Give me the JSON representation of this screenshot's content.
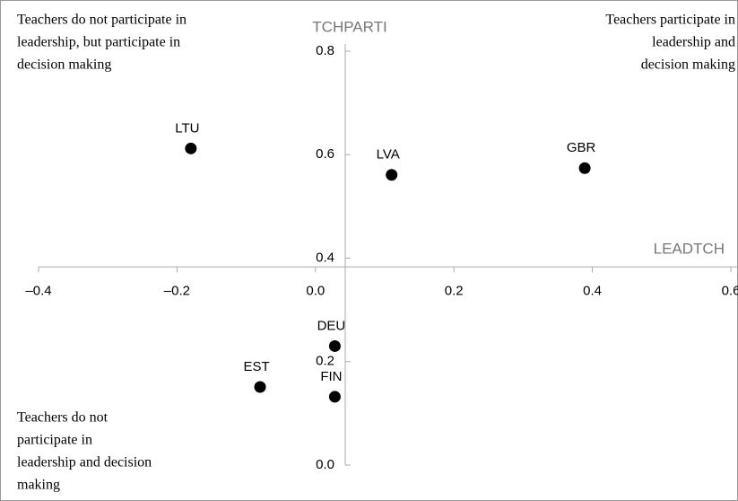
{
  "chart_data": {
    "type": "scatter",
    "x_label": "LEADTCH",
    "y_label": "TCHPARTI",
    "labels": [
      "LTU",
      "LVA",
      "GBR",
      "DEU",
      "EST",
      "FIN"
    ],
    "x": [
      -0.18,
      0.11,
      0.389,
      0.028,
      -0.08,
      0.028
    ],
    "values": [
      0.612,
      0.561,
      0.574,
      0.23,
      0.151,
      0.132
    ],
    "color": "#000000",
    "xlim": [
      -0.4,
      0.6
    ],
    "ylim": [
      0,
      0.8
    ],
    "xticks": [
      {
        "value": -0.4,
        "label": "–0.4"
      },
      {
        "value": -0.2,
        "label": "–0.2"
      },
      {
        "value": 0,
        "label": "0.0"
      },
      0.2,
      0.4,
      0.6
    ],
    "yticks": [
      {
        "value": 0,
        "label": "0.0"
      },
      0.2,
      0.4,
      0.6,
      0.8
    ],
    "x_axis_crosses_y_at": 0.383,
    "y_axis_crosses_x_at": 0.043,
    "annotations": {
      "top_left": [
        "Teachers do not participate in",
        "leadership, but participate in",
        "decision making"
      ],
      "top_right": [
        "Teachers participate in",
        "leadership and",
        "decision making"
      ],
      "bottom_left": [
        "Teachers do not",
        "participate in",
        "leadership and decision",
        "making"
      ]
    }
  }
}
